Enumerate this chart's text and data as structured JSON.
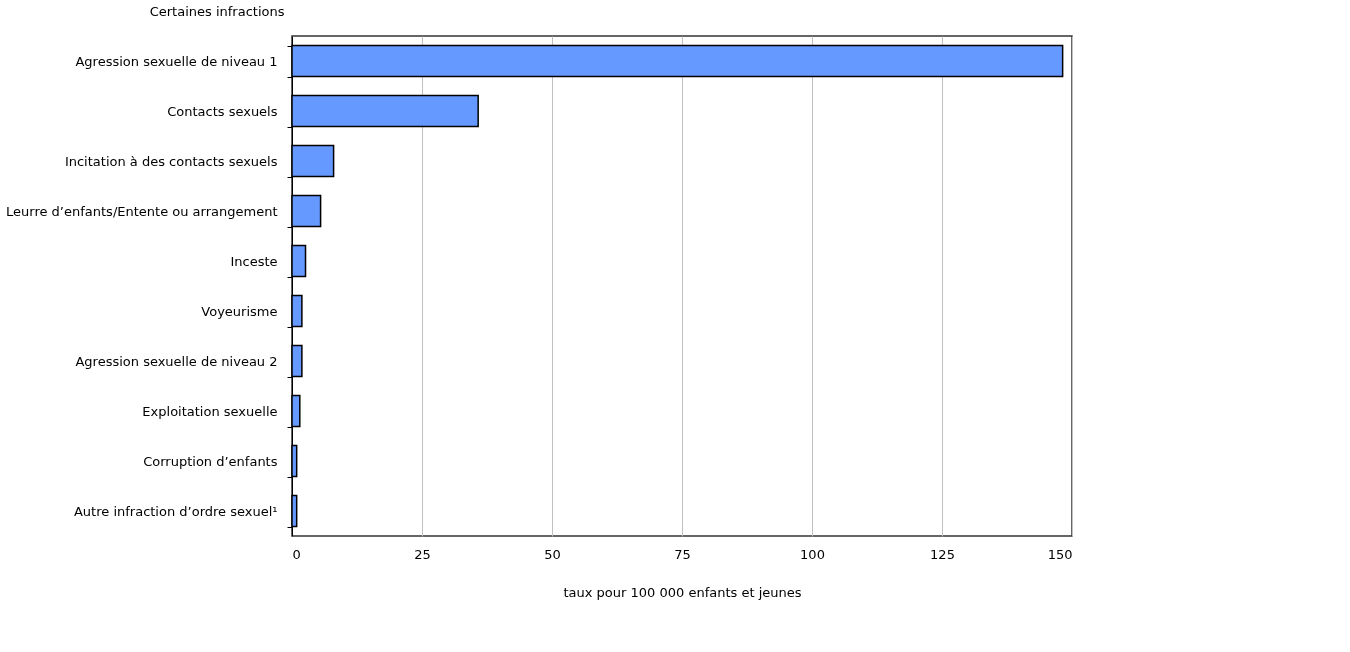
{
  "chart_data": {
    "type": "bar",
    "orientation": "horizontal",
    "ylabel": "Certaines infractions",
    "xlabel": "taux pour 100 000 enfants et jeunes",
    "categories": [
      "Agression sexuelle de niveau 1",
      "Contacts sexuels",
      "Incitation à des contacts sexuels",
      "Leurre d’enfants/Entente ou arrangement",
      "Inceste",
      "Voyeurisme",
      "Agression sexuelle de niveau 2",
      "Exploitation sexuelle",
      "Corruption d’enfants",
      "Autre infraction d’ordre sexuel¹"
    ],
    "values": [
      148.2,
      35.8,
      8.0,
      5.5,
      2.6,
      1.9,
      1.9,
      1.5,
      0.9,
      0.9
    ],
    "color": "#6699ff",
    "xlim": [
      0,
      150
    ],
    "xticks": [
      0,
      25,
      50,
      75,
      100,
      125,
      150
    ],
    "grid": "x"
  }
}
